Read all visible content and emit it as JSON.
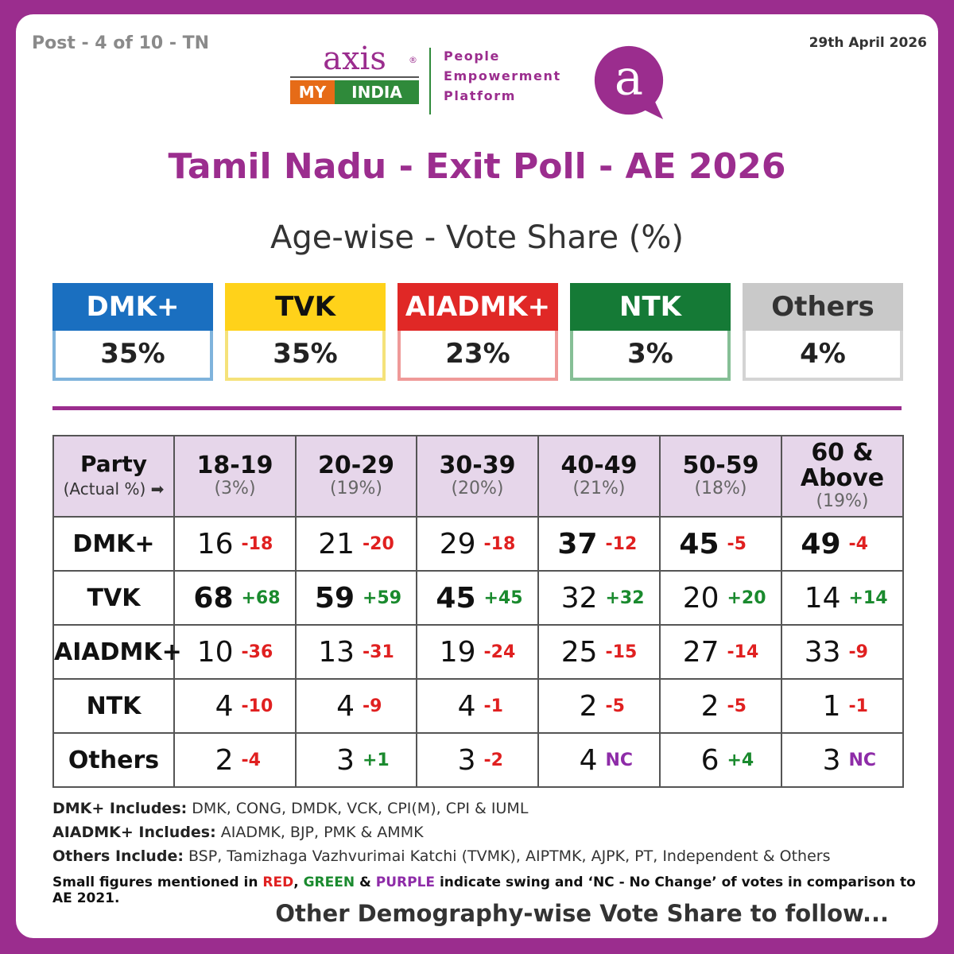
{
  "header": {
    "post_tag": "Post - 4 of 10 - TN",
    "date": "29th April 2026",
    "logo_axis": "axis",
    "logo_reg": "®",
    "logo_my": "MY",
    "logo_india": "INDIA",
    "tagline": [
      "People",
      "Empowerment",
      "Platform"
    ],
    "brand_mark": "a"
  },
  "title": "Tamil Nadu - Exit Poll - AE 2026",
  "subtitle": "Age-wise - Vote Share (%)",
  "summary": [
    {
      "party": "DMK+",
      "share": "35%",
      "head_color": "#1a6fc0",
      "head_text": "#ffffff",
      "border": "#7fb3dc"
    },
    {
      "party": "TVK",
      "share": "35%",
      "head_color": "#ffd21a",
      "head_text": "#111111",
      "border": "#f5e27a"
    },
    {
      "party": "AIADMK+",
      "share": "23%",
      "head_color": "#e02826",
      "head_text": "#ffffff",
      "border": "#ef9a99"
    },
    {
      "party": "NTK",
      "share": "3%",
      "head_color": "#157a36",
      "head_text": "#ffffff",
      "border": "#86bf96"
    },
    {
      "party": "Others",
      "share": "4%",
      "head_color": "#c9c9c9",
      "head_text": "#333333",
      "border": "#d4d4d4"
    }
  ],
  "chart_data": {
    "type": "table",
    "title": "Age-wise - Vote Share (%)",
    "party_header": "Party",
    "actual_header": "(Actual %)",
    "age_groups": [
      {
        "label": "18-19",
        "share": "(3%)"
      },
      {
        "label": "20-29",
        "share": "(19%)"
      },
      {
        "label": "30-39",
        "share": "(20%)"
      },
      {
        "label": "40-49",
        "share": "(21%)"
      },
      {
        "label": "50-59",
        "share": "(18%)"
      },
      {
        "label": "60 & Above",
        "share": "(19%)"
      }
    ],
    "rows": [
      {
        "party": "DMK+",
        "values": [
          16,
          21,
          29,
          37,
          45,
          49
        ],
        "swings": [
          "-18",
          "-20",
          "-18",
          "-12",
          "-5",
          "-4"
        ],
        "bold": [
          false,
          false,
          false,
          true,
          true,
          true
        ]
      },
      {
        "party": "TVK",
        "values": [
          68,
          59,
          45,
          32,
          20,
          14
        ],
        "swings": [
          "+68",
          "+59",
          "+45",
          "+32",
          "+20",
          "+14"
        ],
        "bold": [
          true,
          true,
          true,
          false,
          false,
          false
        ]
      },
      {
        "party": "AIADMK+",
        "values": [
          10,
          13,
          19,
          25,
          27,
          33
        ],
        "swings": [
          "-36",
          "-31",
          "-24",
          "-15",
          "-14",
          "-9"
        ],
        "bold": [
          false,
          false,
          false,
          false,
          false,
          false
        ]
      },
      {
        "party": "NTK",
        "values": [
          4,
          4,
          4,
          2,
          2,
          1
        ],
        "swings": [
          "-10",
          "-9",
          "-1",
          "-5",
          "-5",
          "-1"
        ],
        "bold": [
          false,
          false,
          false,
          false,
          false,
          false
        ]
      },
      {
        "party": "Others",
        "values": [
          2,
          3,
          3,
          4,
          6,
          3
        ],
        "swings": [
          "-4",
          "+1",
          "-2",
          "NC",
          "+4",
          "NC"
        ],
        "bold": [
          false,
          false,
          false,
          false,
          false,
          false
        ]
      }
    ],
    "swing_colors": {
      "negative": "#e02020",
      "positive": "#1a8a2e",
      "no_change": "#8e2ca8"
    }
  },
  "notes": [
    {
      "label": "DMK+ Includes:",
      "text": " DMK, CONG, DMDK, VCK, CPI(M), CPI & IUML"
    },
    {
      "label": "AIADMK+ Includes:",
      "text": " AIADMK, BJP, PMK & AMMK"
    },
    {
      "label": "Others Include:",
      "text": " BSP, Tamizhaga Vazhvurimai Katchi (TVMK), AIPTMK, AJPK, PT, Independent & Others"
    }
  ],
  "legend_note": {
    "prefix": "Small figures mentioned in ",
    "red": "RED",
    "comma": ", ",
    "green": "GREEN",
    "amp": " & ",
    "purple": "PURPLE",
    "suffix": " indicate swing and ‘NC - No Change’ of votes in comparison to AE 2021."
  },
  "footer": "Other Demography-wise Vote Share to follow...",
  "colors": {
    "brand_purple": "#9b2d8e",
    "header_bg": "#e6d6ea"
  }
}
